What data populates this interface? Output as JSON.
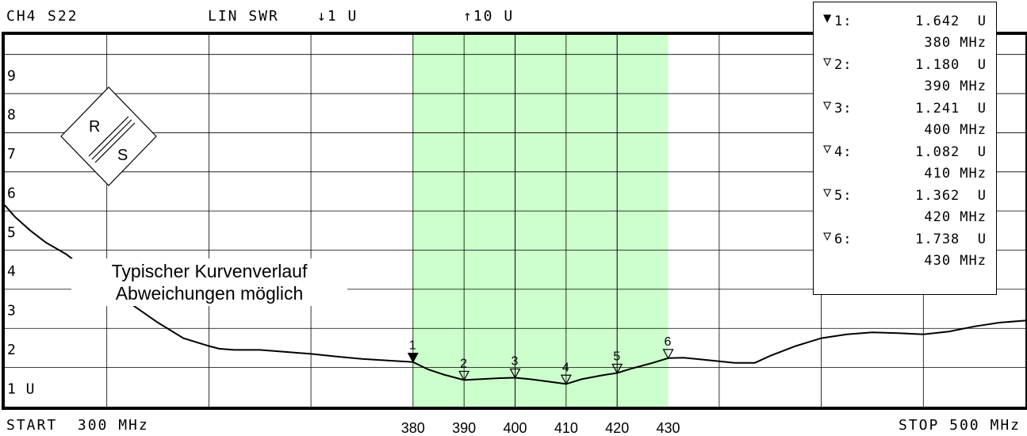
{
  "header": {
    "channel": "CH4",
    "param": "S22",
    "format": "LIN SWR",
    "scale": "↓1 U",
    "ref": "↑10 U"
  },
  "footer": {
    "start": "START  300 MHz",
    "stop": "STOP 500 MHz"
  },
  "annotation": {
    "line1": "Typischer Kurvenverlauf",
    "line2": "Abweichungen möglich"
  },
  "markers": [
    {
      "label": "1:",
      "value": "1.642  U",
      "freq": "380 MHz",
      "active": true
    },
    {
      "label": "2:",
      "value": "1.180  U",
      "freq": "390 MHz",
      "active": false
    },
    {
      "label": "3:",
      "value": "1.241  U",
      "freq": "400 MHz",
      "active": false
    },
    {
      "label": "4:",
      "value": "1.082  U",
      "freq": "410 MHz",
      "active": false
    },
    {
      "label": "5:",
      "value": "1.362  U",
      "freq": "420 MHz",
      "active": false
    },
    {
      "label": "6:",
      "value": "1.738  U",
      "freq": "430 MHz",
      "active": false
    }
  ],
  "colors": {
    "band": "#ccffcc",
    "grid": "#000000",
    "trace": "#000000"
  },
  "logo_text": [
    "R",
    "S"
  ],
  "chart_data": {
    "type": "line",
    "title": "",
    "xlabel": "",
    "ylabel": "",
    "xlim": [
      300,
      500
    ],
    "ylim": [
      0.5,
      10
    ],
    "grid": true,
    "y_ticks": [
      {
        "value": 1,
        "label": "1 U"
      },
      {
        "value": 2,
        "label": "2"
      },
      {
        "value": 3,
        "label": "3"
      },
      {
        "value": 4,
        "label": "4"
      },
      {
        "value": 5,
        "label": "5"
      },
      {
        "value": 6,
        "label": "6"
      },
      {
        "value": 7,
        "label": "7"
      },
      {
        "value": 8,
        "label": "8"
      },
      {
        "value": 9,
        "label": "9"
      }
    ],
    "x_ticks": [
      {
        "value": 380,
        "label": "380"
      },
      {
        "value": 390,
        "label": "390"
      },
      {
        "value": 400,
        "label": "400"
      },
      {
        "value": 410,
        "label": "410"
      },
      {
        "value": 420,
        "label": "420"
      },
      {
        "value": 430,
        "label": "430"
      }
    ],
    "highlight_band": [
      380,
      430
    ],
    "series": [
      {
        "x": [
          300,
          302,
          305,
          308,
          312,
          316,
          320,
          325,
          330,
          335,
          340,
          342,
          345,
          350,
          355,
          360,
          365,
          370,
          375,
          380,
          383,
          386,
          390,
          393,
          397,
          400,
          403,
          406,
          410,
          413,
          417,
          420,
          423,
          427,
          430,
          433,
          437,
          440,
          443,
          447,
          450,
          455,
          460,
          465,
          470,
          475,
          480,
          485,
          490,
          495,
          500
        ],
        "y": [
          5.65,
          5.35,
          5.0,
          4.7,
          4.4,
          4.0,
          3.6,
          3.1,
          2.65,
          2.25,
          2.05,
          1.98,
          1.95,
          1.95,
          1.9,
          1.85,
          1.78,
          1.72,
          1.68,
          1.64,
          1.45,
          1.32,
          1.18,
          1.2,
          1.23,
          1.24,
          1.2,
          1.15,
          1.08,
          1.2,
          1.3,
          1.36,
          1.48,
          1.62,
          1.74,
          1.75,
          1.7,
          1.66,
          1.62,
          1.62,
          1.8,
          2.05,
          2.25,
          2.35,
          2.4,
          2.38,
          2.35,
          2.42,
          2.55,
          2.65,
          2.7
        ]
      }
    ],
    "marker_points": [
      {
        "n": "1",
        "x": 380,
        "y": 1.642
      },
      {
        "n": "2",
        "x": 390,
        "y": 1.18
      },
      {
        "n": "3",
        "x": 400,
        "y": 1.241
      },
      {
        "n": "4",
        "x": 410,
        "y": 1.082
      },
      {
        "n": "5",
        "x": 420,
        "y": 1.362
      },
      {
        "n": "6",
        "x": 430,
        "y": 1.738
      }
    ]
  }
}
